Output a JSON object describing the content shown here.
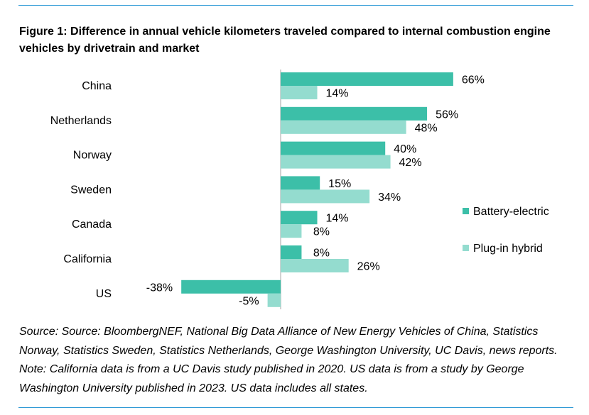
{
  "title": "Figure 1:  Difference in annual vehicle kilometers traveled compared to internal combustion engine vehicles by drivetrain and market",
  "source": "Source: Source: BloombergNEF, National Big Data Alliance of New Energy Vehicles of China, Statistics Norway, Statistics Sweden, Statistics Netherlands, George Washington University, UC Davis, news reports. Note: California data is from a UC Davis study published in 2020. US data is from a study by George Washington University published in 2023. US data includes all states.",
  "colors": {
    "battery_electric": "#3cbfa8",
    "plug_in_hybrid": "#94dccf",
    "rule": "#2f9ad6"
  },
  "chart_data": {
    "type": "bar",
    "orientation": "horizontal",
    "categories": [
      "China",
      "Netherlands",
      "Norway",
      "Sweden",
      "Canada",
      "California",
      "US"
    ],
    "series": [
      {
        "name": "Battery-electric",
        "values": [
          66,
          56,
          40,
          15,
          14,
          8,
          -38
        ],
        "labels": [
          "66%",
          "56%",
          "40%",
          "15%",
          "14%",
          "8%",
          "-38%"
        ]
      },
      {
        "name": "Plug-in hybrid",
        "values": [
          14,
          48,
          42,
          34,
          8,
          26,
          -5
        ],
        "labels": [
          "14%",
          "48%",
          "42%",
          "34%",
          "8%",
          "26%",
          "-5%"
        ]
      }
    ],
    "unit": "%",
    "xlim": [
      -38,
      66
    ],
    "legend": "right",
    "grid": false
  }
}
